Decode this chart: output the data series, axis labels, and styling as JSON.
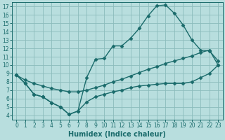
{
  "xlabel": "Humidex (Indice chaleur)",
  "background_color": "#b8dede",
  "grid_color": "#8bbcbc",
  "line_color": "#1a6b6b",
  "xlim": [
    -0.5,
    23.5
  ],
  "ylim": [
    3.5,
    17.5
  ],
  "xticks": [
    0,
    1,
    2,
    3,
    4,
    5,
    6,
    7,
    8,
    9,
    10,
    11,
    12,
    13,
    14,
    15,
    16,
    17,
    18,
    19,
    20,
    21,
    22,
    23
  ],
  "yticks": [
    4,
    5,
    6,
    7,
    8,
    9,
    10,
    11,
    12,
    13,
    14,
    15,
    16,
    17
  ],
  "line1_x": [
    0,
    1,
    2,
    3,
    4,
    5,
    6,
    7,
    8,
    9,
    10,
    11,
    12,
    13,
    14,
    15,
    16,
    17,
    18,
    19,
    20,
    21,
    22,
    23
  ],
  "line1_y": [
    8.8,
    7.8,
    6.5,
    6.2,
    5.5,
    5.0,
    4.1,
    4.5,
    8.5,
    10.7,
    10.8,
    12.3,
    12.3,
    13.2,
    14.4,
    15.9,
    17.1,
    17.2,
    16.2,
    14.8,
    13.0,
    11.8,
    11.7,
    10.5
  ],
  "line2_x": [
    0,
    1,
    2,
    3,
    4,
    5,
    6,
    7,
    8,
    9,
    10,
    11,
    12,
    13,
    14,
    15,
    16,
    17,
    18,
    19,
    20,
    21,
    22,
    23
  ],
  "line2_y": [
    8.8,
    8.2,
    7.8,
    7.5,
    7.2,
    7.0,
    6.8,
    6.8,
    7.0,
    7.3,
    7.6,
    8.0,
    8.3,
    8.7,
    9.1,
    9.5,
    9.8,
    10.2,
    10.5,
    10.8,
    11.1,
    11.5,
    11.8,
    10.0
  ],
  "line3_x": [
    0,
    1,
    2,
    3,
    4,
    5,
    6,
    7,
    8,
    9,
    10,
    11,
    12,
    13,
    14,
    15,
    16,
    17,
    18,
    19,
    20,
    21,
    22,
    23
  ],
  "line3_y": [
    8.8,
    7.8,
    6.5,
    6.2,
    5.5,
    5.0,
    4.1,
    4.5,
    5.6,
    6.2,
    6.5,
    6.8,
    7.0,
    7.3,
    7.5,
    7.6,
    7.7,
    7.8,
    7.8,
    7.8,
    8.0,
    8.5,
    9.0,
    10.0
  ],
  "marker": "D",
  "markersize": 2.5,
  "linewidth": 1.0,
  "tick_fontsize": 5.5,
  "label_fontsize": 7
}
